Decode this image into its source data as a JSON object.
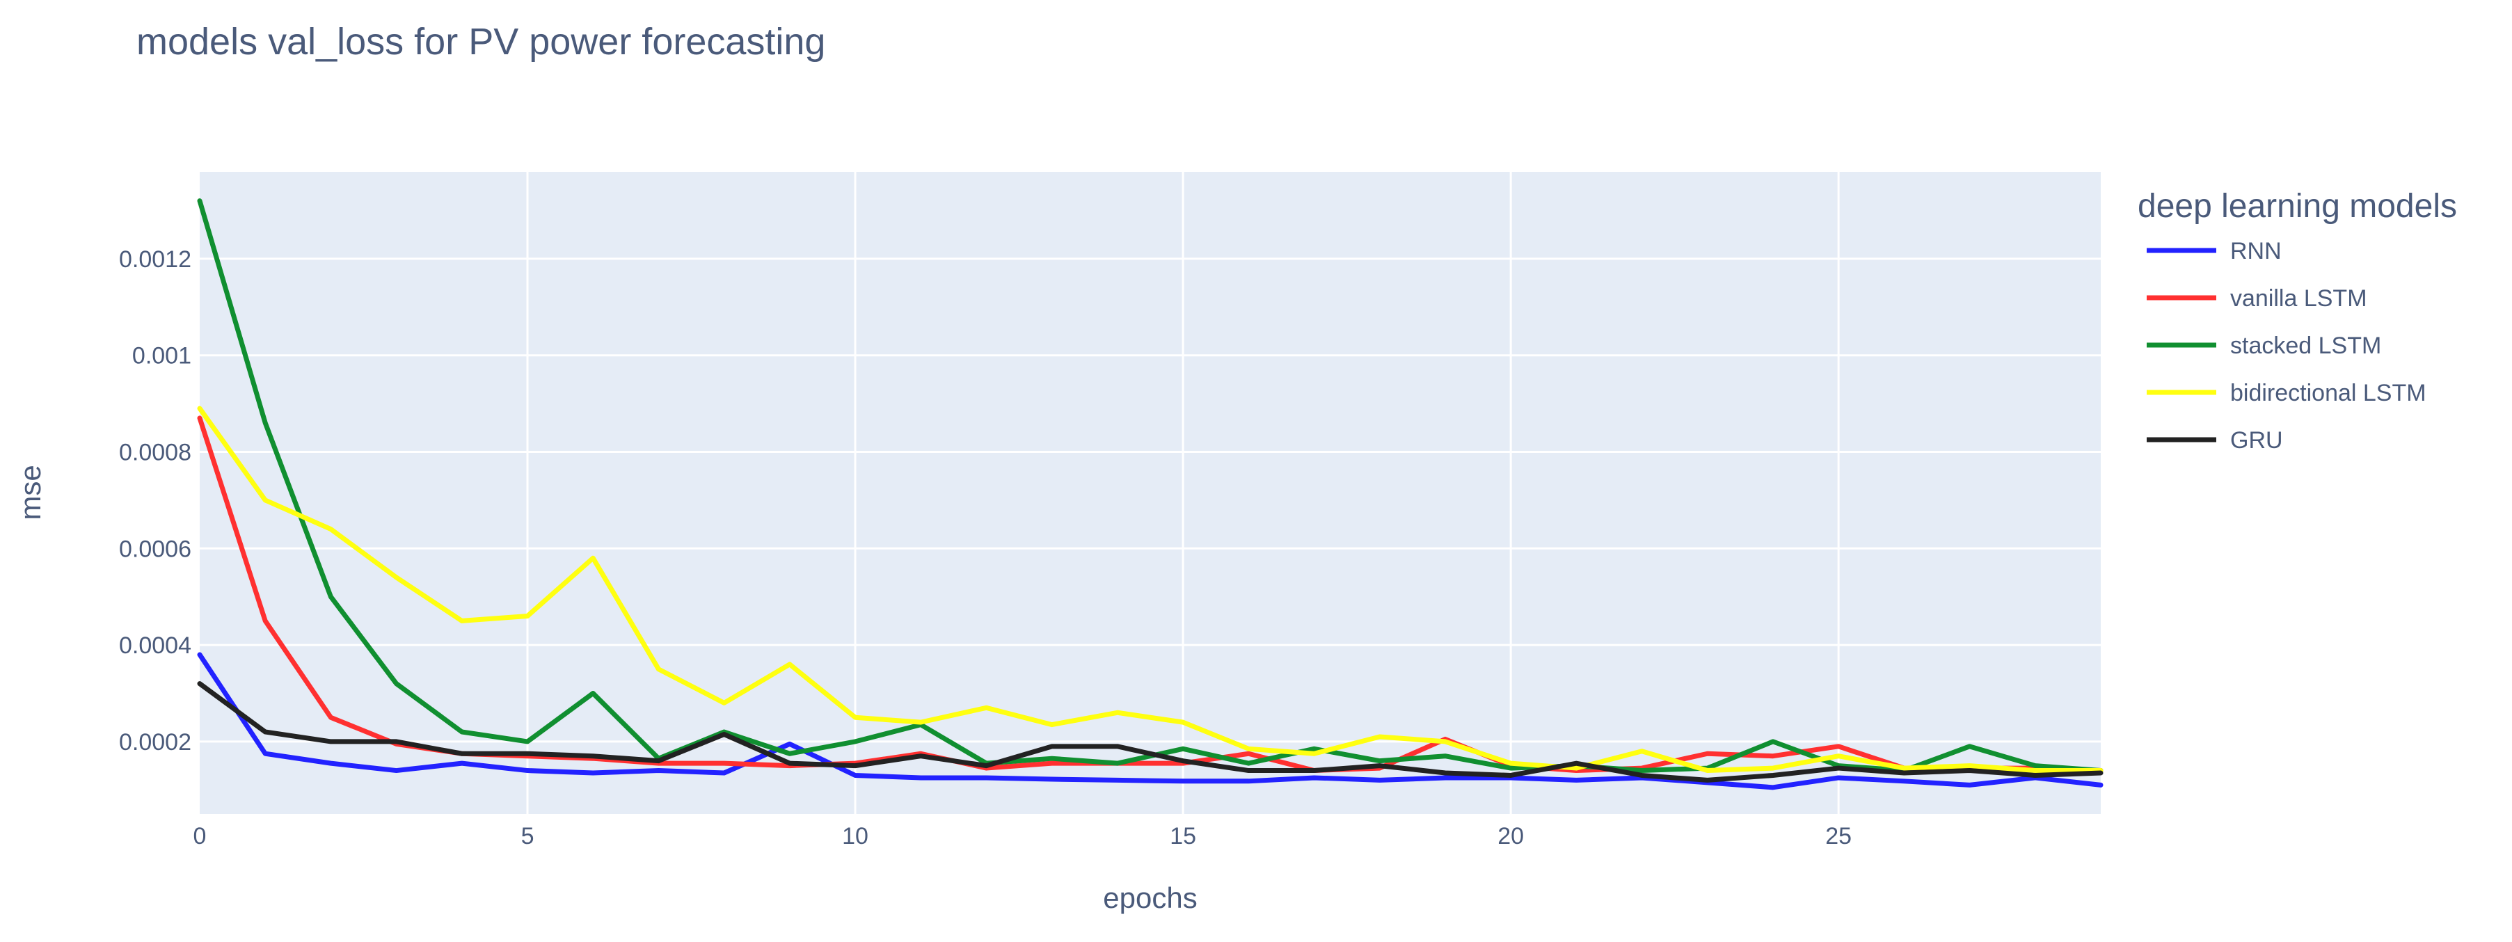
{
  "chart_data": {
    "type": "line",
    "title": "models val_loss for PV power forecasting",
    "xlabel": "epochs",
    "ylabel": "mse",
    "xlim": [
      0,
      29
    ],
    "ylim": [
      5e-05,
      0.00138
    ],
    "x_ticks": [
      0,
      5,
      10,
      15,
      20,
      25
    ],
    "x_tick_labels": [
      "0",
      "5",
      "10",
      "15",
      "20",
      "25"
    ],
    "y_ticks": [
      0.0002,
      0.0004,
      0.0006,
      0.0008,
      0.001,
      0.0012
    ],
    "y_tick_labels": [
      "0.0002",
      "0.0004",
      "0.0006",
      "0.0008",
      "0.001",
      "0.0012"
    ],
    "grid": true,
    "plot_background": "#e5ecf6",
    "legend": {
      "title": "deep learning models",
      "placement": "right"
    },
    "x": [
      0,
      1,
      2,
      3,
      4,
      5,
      6,
      7,
      8,
      9,
      10,
      11,
      12,
      13,
      14,
      15,
      16,
      17,
      18,
      19,
      20,
      21,
      22,
      23,
      24,
      25,
      26,
      27,
      28,
      29
    ],
    "series": [
      {
        "name": "RNN",
        "color": "#2222ff",
        "values": [
          0.00038,
          0.000175,
          0.000155,
          0.00014,
          0.000155,
          0.00014,
          0.000135,
          0.00014,
          0.000135,
          0.000195,
          0.00013,
          0.000125,
          0.000125,
          0.000122,
          0.00012,
          0.000118,
          0.000118,
          0.000125,
          0.00012,
          0.000125,
          0.000125,
          0.00012,
          0.000125,
          0.000115,
          0.000105,
          0.000125,
          0.000118,
          0.00011,
          0.000125,
          0.00011
        ]
      },
      {
        "name": "vanilla LSTM",
        "color": "#ff3030",
        "values": [
          0.00087,
          0.00045,
          0.00025,
          0.000195,
          0.000175,
          0.00017,
          0.000165,
          0.000155,
          0.000155,
          0.00015,
          0.000155,
          0.000175,
          0.000145,
          0.000155,
          0.000155,
          0.000155,
          0.000175,
          0.00014,
          0.000145,
          0.000205,
          0.00015,
          0.00014,
          0.000145,
          0.000175,
          0.00017,
          0.00019,
          0.000145,
          0.000145,
          0.000145,
          0.00014
        ]
      },
      {
        "name": "stacked LSTM",
        "color": "#108f30",
        "values": [
          0.00132,
          0.00086,
          0.0005,
          0.00032,
          0.00022,
          0.0002,
          0.0003,
          0.000165,
          0.00022,
          0.000175,
          0.0002,
          0.000235,
          0.000155,
          0.000165,
          0.000155,
          0.000185,
          0.000155,
          0.000185,
          0.00016,
          0.00017,
          0.000145,
          0.00015,
          0.00014,
          0.000145,
          0.0002,
          0.00015,
          0.00014,
          0.00019,
          0.00015,
          0.00014
        ]
      },
      {
        "name": "bidirectional LSTM",
        "color": "#ffff10",
        "values": [
          0.00089,
          0.0007,
          0.00064,
          0.00054,
          0.00045,
          0.00046,
          0.00058,
          0.00035,
          0.00028,
          0.00036,
          0.00025,
          0.00024,
          0.00027,
          0.000235,
          0.00026,
          0.00024,
          0.000185,
          0.000175,
          0.00021,
          0.0002,
          0.000155,
          0.000145,
          0.00018,
          0.00014,
          0.000145,
          0.00017,
          0.000145,
          0.00015,
          0.00014,
          0.00014
        ]
      },
      {
        "name": "GRU",
        "color": "#222222",
        "values": [
          0.00032,
          0.00022,
          0.0002,
          0.0002,
          0.000175,
          0.000175,
          0.00017,
          0.00016,
          0.000215,
          0.000155,
          0.00015,
          0.00017,
          0.00015,
          0.00019,
          0.00019,
          0.00016,
          0.00014,
          0.00014,
          0.00015,
          0.000135,
          0.00013,
          0.000155,
          0.00013,
          0.00012,
          0.00013,
          0.000145,
          0.000135,
          0.00014,
          0.00013,
          0.000135
        ]
      }
    ]
  }
}
